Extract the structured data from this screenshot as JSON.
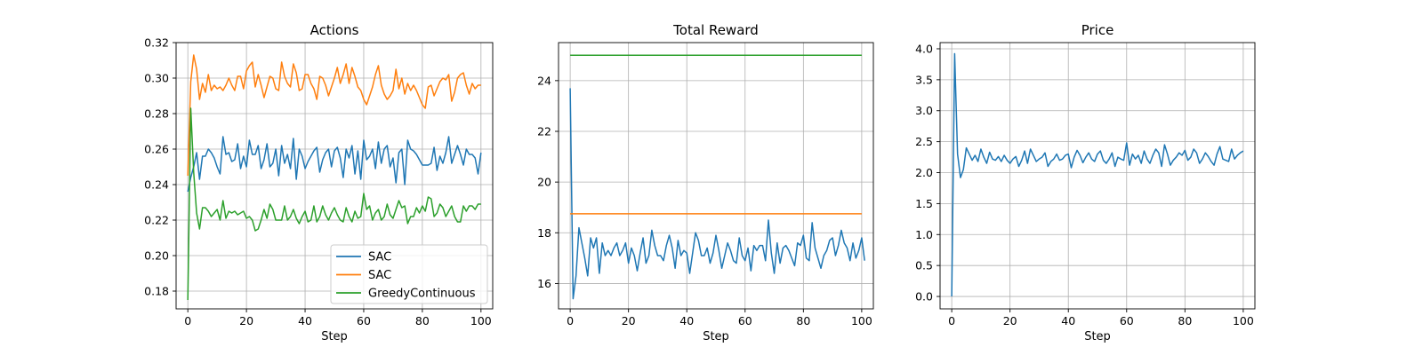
{
  "figure": {
    "background": "#ffffff",
    "grid_color": "#b0b0b0",
    "axis_color": "#000000"
  },
  "chart_data": [
    {
      "type": "line",
      "title": "Actions",
      "xlabel": "Step",
      "ylabel": "",
      "xlim": [
        -4,
        104
      ],
      "ylim": [
        0.17,
        0.32
      ],
      "xticks": [
        0,
        20,
        40,
        60,
        80,
        100
      ],
      "xtick_labels": [
        "0",
        "20",
        "40",
        "60",
        "80",
        "100"
      ],
      "yticks": [
        0.18,
        0.2,
        0.22,
        0.24,
        0.26,
        0.28,
        0.3,
        0.32
      ],
      "ytick_labels": [
        "0.18",
        "0.20",
        "0.22",
        "0.24",
        "0.26",
        "0.28",
        "0.30",
        "0.32"
      ],
      "grid": true,
      "legend": "lower-right",
      "series": [
        {
          "name": "SAC",
          "color": "#1f77b4",
          "values": [
            0.236,
            0.244,
            0.25,
            0.258,
            0.243,
            0.256,
            0.256,
            0.26,
            0.258,
            0.255,
            0.25,
            0.246,
            0.267,
            0.257,
            0.258,
            0.253,
            0.254,
            0.263,
            0.249,
            0.256,
            0.25,
            0.265,
            0.257,
            0.257,
            0.262,
            0.249,
            0.254,
            0.263,
            0.25,
            0.252,
            0.26,
            0.245,
            0.262,
            0.252,
            0.257,
            0.249,
            0.266,
            0.243,
            0.26,
            0.256,
            0.249,
            0.253,
            0.256,
            0.259,
            0.261,
            0.247,
            0.254,
            0.258,
            0.26,
            0.25,
            0.259,
            0.261,
            0.255,
            0.244,
            0.26,
            0.255,
            0.262,
            0.246,
            0.259,
            0.243,
            0.265,
            0.254,
            0.256,
            0.26,
            0.249,
            0.264,
            0.252,
            0.26,
            0.262,
            0.25,
            0.255,
            0.241,
            0.258,
            0.26,
            0.24,
            0.265,
            0.26,
            0.259,
            0.257,
            0.254,
            0.251,
            0.251,
            0.251,
            0.252,
            0.261,
            0.248,
            0.256,
            0.252,
            0.258,
            0.267,
            0.252,
            0.257,
            0.262,
            0.257,
            0.251,
            0.26,
            0.257,
            0.257,
            0.255,
            0.246,
            0.258
          ]
        },
        {
          "name": "SAC",
          "color": "#ff7f0e",
          "values": [
            0.245,
            0.298,
            0.313,
            0.305,
            0.288,
            0.297,
            0.292,
            0.302,
            0.293,
            0.296,
            0.294,
            0.295,
            0.293,
            0.296,
            0.3,
            0.296,
            0.293,
            0.301,
            0.301,
            0.294,
            0.304,
            0.307,
            0.309,
            0.295,
            0.302,
            0.296,
            0.289,
            0.295,
            0.301,
            0.3,
            0.294,
            0.293,
            0.309,
            0.301,
            0.297,
            0.295,
            0.308,
            0.303,
            0.293,
            0.294,
            0.302,
            0.302,
            0.297,
            0.294,
            0.288,
            0.301,
            0.3,
            0.296,
            0.29,
            0.295,
            0.3,
            0.306,
            0.297,
            0.302,
            0.308,
            0.297,
            0.306,
            0.301,
            0.295,
            0.293,
            0.288,
            0.285,
            0.29,
            0.295,
            0.302,
            0.307,
            0.296,
            0.291,
            0.288,
            0.29,
            0.293,
            0.305,
            0.294,
            0.3,
            0.291,
            0.297,
            0.293,
            0.296,
            0.293,
            0.289,
            0.285,
            0.283,
            0.295,
            0.296,
            0.29,
            0.294,
            0.298,
            0.3,
            0.299,
            0.302,
            0.287,
            0.292,
            0.3,
            0.302,
            0.303,
            0.296,
            0.291,
            0.297,
            0.294,
            0.296,
            0.296
          ]
        },
        {
          "name": "GreedyContinuous",
          "color": "#2ca02c",
          "values": [
            0.175,
            0.283,
            0.247,
            0.224,
            0.215,
            0.227,
            0.227,
            0.225,
            0.222,
            0.224,
            0.226,
            0.22,
            0.231,
            0.221,
            0.225,
            0.224,
            0.225,
            0.223,
            0.224,
            0.225,
            0.221,
            0.222,
            0.22,
            0.214,
            0.215,
            0.22,
            0.226,
            0.221,
            0.229,
            0.226,
            0.22,
            0.22,
            0.22,
            0.228,
            0.22,
            0.222,
            0.226,
            0.221,
            0.218,
            0.222,
            0.225,
            0.219,
            0.22,
            0.228,
            0.219,
            0.222,
            0.228,
            0.223,
            0.22,
            0.224,
            0.227,
            0.223,
            0.22,
            0.219,
            0.227,
            0.222,
            0.219,
            0.225,
            0.221,
            0.222,
            0.235,
            0.226,
            0.228,
            0.22,
            0.224,
            0.226,
            0.22,
            0.222,
            0.229,
            0.223,
            0.221,
            0.226,
            0.231,
            0.227,
            0.228,
            0.218,
            0.222,
            0.222,
            0.227,
            0.224,
            0.228,
            0.225,
            0.233,
            0.232,
            0.222,
            0.224,
            0.229,
            0.227,
            0.222,
            0.225,
            0.228,
            0.222,
            0.219,
            0.219,
            0.228,
            0.225,
            0.228,
            0.228,
            0.226,
            0.229,
            0.229
          ]
        }
      ]
    },
    {
      "type": "line",
      "title": "Total Reward",
      "xlabel": "Step",
      "ylabel": "",
      "xlim": [
        -4,
        104
      ],
      "ylim": [
        15,
        25.5
      ],
      "xticks": [
        0,
        20,
        40,
        60,
        80,
        100
      ],
      "xtick_labels": [
        "0",
        "20",
        "40",
        "60",
        "80",
        "100"
      ],
      "yticks": [
        16,
        18,
        20,
        22,
        24
      ],
      "ytick_labels": [
        "16",
        "18",
        "20",
        "22",
        "24"
      ],
      "grid": true,
      "series": [
        {
          "name": "",
          "color": "#1f77b4",
          "values": [
            23.7,
            15.4,
            16.3,
            18.2,
            17.6,
            17.0,
            16.3,
            17.8,
            17.4,
            17.8,
            16.4,
            17.6,
            17.1,
            17.3,
            17.1,
            17.4,
            17.6,
            17.1,
            17.3,
            17.6,
            16.8,
            17.4,
            17.1,
            16.5,
            17.2,
            17.8,
            16.8,
            17.1,
            18.1,
            17.5,
            17.1,
            17.1,
            16.9,
            17.5,
            17.9,
            17.4,
            16.6,
            17.7,
            17.1,
            17.3,
            17.2,
            16.4,
            17.2,
            18.0,
            17.7,
            17.1,
            17.1,
            17.4,
            16.8,
            17.2,
            17.9,
            17.3,
            16.6,
            17.1,
            17.6,
            17.3,
            16.9,
            16.8,
            17.8,
            17.1,
            16.9,
            17.4,
            16.5,
            17.5,
            17.3,
            17.5,
            17.5,
            16.9,
            18.5,
            17.2,
            16.4,
            17.6,
            16.8,
            17.4,
            17.5,
            17.3,
            17.0,
            16.7,
            17.6,
            17.5,
            17.9,
            17.0,
            16.9,
            18.4,
            17.4,
            17.0,
            16.6,
            17.1,
            17.3,
            17.7,
            17.8,
            17.1,
            17.5,
            18.1,
            17.6,
            17.4,
            16.9,
            17.6,
            17.0,
            17.3,
            17.8,
            16.9
          ]
        },
        {
          "name": "",
          "color": "#ff7f0e",
          "values": [
            18.75
          ],
          "constant": true
        },
        {
          "name": "",
          "color": "#2ca02c",
          "values": [
            25.0
          ],
          "constant": true
        }
      ]
    },
    {
      "type": "line",
      "title": "Price",
      "xlabel": "Step",
      "ylabel": "",
      "xlim": [
        -4,
        104
      ],
      "ylim": [
        -0.2,
        4.1
      ],
      "xticks": [
        0,
        20,
        40,
        60,
        80,
        100
      ],
      "xtick_labels": [
        "0",
        "20",
        "40",
        "60",
        "80",
        "100"
      ],
      "yticks": [
        0.0,
        0.5,
        1.0,
        1.5,
        2.0,
        2.5,
        3.0,
        3.5,
        4.0
      ],
      "ytick_labels": [
        "0.0",
        "0.5",
        "1.0",
        "1.5",
        "2.0",
        "2.5",
        "3.0",
        "3.5",
        "4.0"
      ],
      "grid": true,
      "series": [
        {
          "name": "",
          "color": "#1f77b4",
          "values": [
            0.0,
            3.92,
            2.3,
            1.92,
            2.05,
            2.4,
            2.3,
            2.2,
            2.28,
            2.18,
            2.38,
            2.25,
            2.15,
            2.33,
            2.22,
            2.2,
            2.26,
            2.18,
            2.28,
            2.2,
            2.15,
            2.22,
            2.26,
            2.1,
            2.2,
            2.35,
            2.15,
            2.38,
            2.28,
            2.18,
            2.22,
            2.25,
            2.32,
            2.1,
            2.18,
            2.22,
            2.3,
            2.2,
            2.22,
            2.28,
            2.3,
            2.08,
            2.25,
            2.36,
            2.28,
            2.16,
            2.25,
            2.32,
            2.22,
            2.18,
            2.3,
            2.35,
            2.2,
            2.15,
            2.22,
            2.32,
            2.1,
            2.25,
            2.22,
            2.2,
            2.48,
            2.12,
            2.3,
            2.22,
            2.28,
            2.15,
            2.35,
            2.22,
            2.15,
            2.28,
            2.38,
            2.32,
            2.1,
            2.45,
            2.3,
            2.12,
            2.2,
            2.25,
            2.32,
            2.28,
            2.36,
            2.2,
            2.25,
            2.38,
            2.32,
            2.15,
            2.22,
            2.32,
            2.26,
            2.18,
            2.12,
            2.3,
            2.42,
            2.22,
            2.2,
            2.18,
            2.38,
            2.22,
            2.28,
            2.32,
            2.35
          ]
        }
      ]
    }
  ]
}
